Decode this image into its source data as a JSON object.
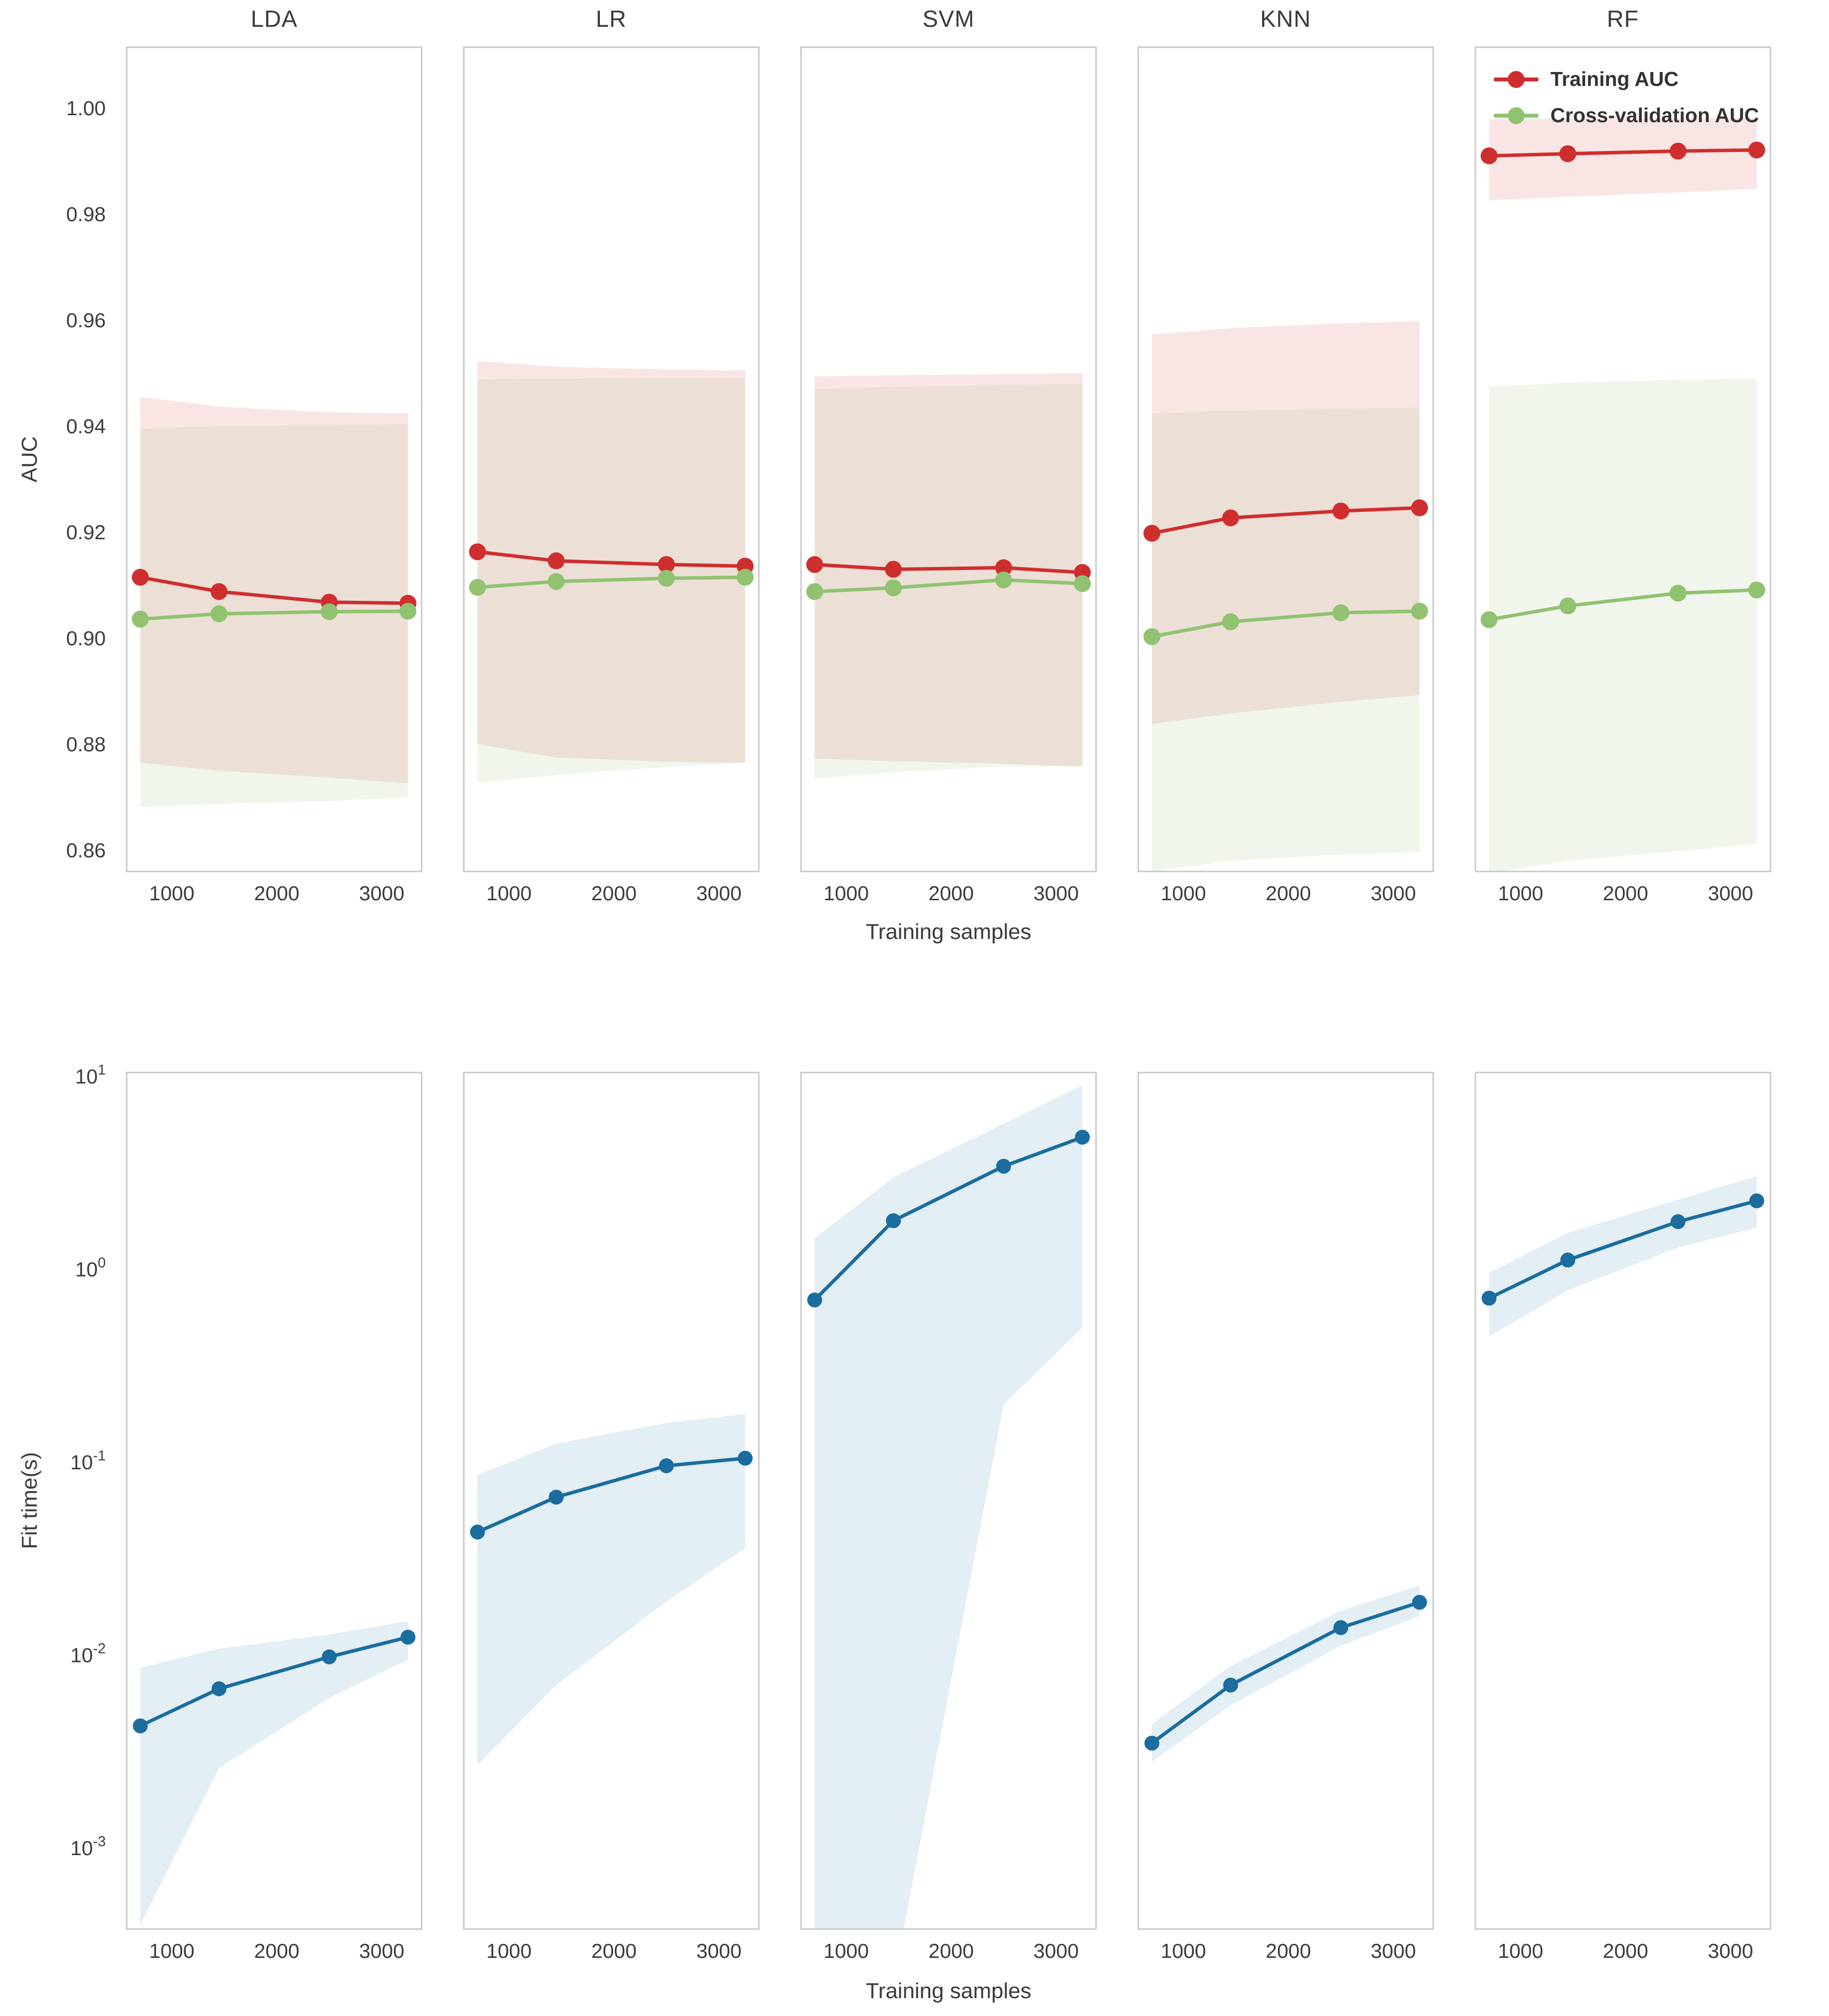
{
  "chart_data": {
    "type": "line",
    "x": [
      700,
      1450,
      2500,
      3250
    ],
    "x_ticks": [
      1000,
      2000,
      3000
    ],
    "xlim": [
      570,
      3380
    ],
    "xlabel": "Training samples",
    "grid": false,
    "legend_position": "upper-right-panel",
    "legend": [
      {
        "label": "Training AUC",
        "color": "#cf2e2e"
      },
      {
        "label": "Cross-validation AUC",
        "color": "#90c270"
      }
    ],
    "colors": {
      "training_line": "#cf2e2e",
      "cv_line": "#90c270",
      "fit_time_line": "#1a6d9e",
      "training_fill": "rgba(223,93,93,0.16)",
      "cv_fill": "rgba(150,185,110,0.13)",
      "fit_time_fill": "rgba(80,150,190,0.16)",
      "panel_border": "#c8c8c8",
      "tick_text": "#3c3c3c"
    },
    "rows": [
      {
        "ylabel": "AUC",
        "yscale": "linear",
        "ylim": [
          0.856,
          1.0115
        ],
        "yticks": [
          [
            0.86,
            "0.86"
          ],
          [
            0.88,
            "0.88"
          ],
          [
            0.9,
            "0.90"
          ],
          [
            0.92,
            "0.92"
          ],
          [
            0.94,
            "0.94"
          ],
          [
            0.96,
            "0.96"
          ],
          [
            0.98,
            "0.98"
          ],
          [
            1.0,
            "1.00"
          ]
        ],
        "panels": [
          {
            "title": "LDA",
            "series": [
              {
                "name": "Training AUC",
                "color": "#cf2e2e",
                "fill": "rgba(223,93,93,0.16)",
                "values": [
                  0.9115,
                  0.9088,
                  0.9068,
                  0.9066
                ],
                "band_low": [
                  0.8765,
                  0.875,
                  0.8737,
                  0.8726
                ],
                "band_high": [
                  0.9455,
                  0.9437,
                  0.9426,
                  0.9424
                ]
              },
              {
                "name": "Cross-validation AUC",
                "color": "#90c270",
                "fill": "rgba(150,185,110,0.13)",
                "values": [
                  0.9036,
                  0.9046,
                  0.905,
                  0.9051
                ],
                "band_low": [
                  0.8682,
                  0.8687,
                  0.8693,
                  0.87
                ],
                "band_high": [
                  0.9395,
                  0.94,
                  0.9402,
                  0.9404
                ]
              }
            ]
          },
          {
            "title": "LR",
            "series": [
              {
                "name": "Training AUC",
                "color": "#cf2e2e",
                "fill": "rgba(223,93,93,0.16)",
                "values": [
                  0.9163,
                  0.9146,
                  0.9139,
                  0.9136
                ],
                "band_low": [
                  0.88,
                  0.8775,
                  0.8767,
                  0.8765
                ],
                "band_high": [
                  0.9523,
                  0.9512,
                  0.9507,
                  0.9505
                ]
              },
              {
                "name": "Cross-validation AUC",
                "color": "#90c270",
                "fill": "rgba(150,185,110,0.13)",
                "values": [
                  0.9096,
                  0.9107,
                  0.9113,
                  0.9115
                ],
                "band_low": [
                  0.8727,
                  0.8742,
                  0.8757,
                  0.8765
                ],
                "band_high": [
                  0.9488,
                  0.949,
                  0.9491,
                  0.9491
                ]
              }
            ]
          },
          {
            "title": "SVM",
            "series": [
              {
                "name": "Training AUC",
                "color": "#cf2e2e",
                "fill": "rgba(223,93,93,0.16)",
                "values": [
                  0.9139,
                  0.913,
                  0.9133,
                  0.9124
                ],
                "band_low": [
                  0.8773,
                  0.8768,
                  0.8763,
                  0.8758
                ],
                "band_high": [
                  0.9494,
                  0.9496,
                  0.9498,
                  0.95
                ]
              },
              {
                "name": "Cross-validation AUC",
                "color": "#90c270",
                "fill": "rgba(150,185,110,0.13)",
                "values": [
                  0.9088,
                  0.9095,
                  0.911,
                  0.9103
                ],
                "band_low": [
                  0.8735,
                  0.8747,
                  0.8758,
                  0.8758
                ],
                "band_high": [
                  0.947,
                  0.9474,
                  0.9478,
                  0.948
                ]
              }
            ]
          },
          {
            "title": "KNN",
            "series": [
              {
                "name": "Training AUC",
                "color": "#cf2e2e",
                "fill": "rgba(223,93,93,0.16)",
                "values": [
                  0.9198,
                  0.9227,
                  0.924,
                  0.9246
                ],
                "band_low": [
                  0.8838,
                  0.8858,
                  0.888,
                  0.8893
                ],
                "band_high": [
                  0.9573,
                  0.9585,
                  0.9594,
                  0.9598
                ]
              },
              {
                "name": "Cross-validation AUC",
                "color": "#90c270",
                "fill": "rgba(150,185,110,0.13)",
                "values": [
                  0.9003,
                  0.9031,
                  0.9048,
                  0.9051
                ],
                "band_low": [
                  0.856,
                  0.858,
                  0.8592,
                  0.8596
                ],
                "band_high": [
                  0.9424,
                  0.9429,
                  0.9433,
                  0.9435
                ]
              }
            ]
          },
          {
            "title": "RF",
            "series": [
              {
                "name": "Training AUC",
                "color": "#cf2e2e",
                "fill": "rgba(223,93,93,0.16)",
                "values": [
                  0.991,
                  0.9914,
                  0.9919,
                  0.9921
                ],
                "band_low": [
                  0.9826,
                  0.9833,
                  0.9841,
                  0.9848
                ],
                "band_high": [
                  0.9979,
                  0.998,
                  0.9981,
                  0.9982
                ]
              },
              {
                "name": "Cross-validation AUC",
                "color": "#90c270",
                "fill": "rgba(150,185,110,0.13)",
                "values": [
                  0.9035,
                  0.9061,
                  0.9085,
                  0.9091
                ],
                "band_low": [
                  0.8556,
                  0.858,
                  0.8598,
                  0.8612
                ],
                "band_high": [
                  0.9474,
                  0.9482,
                  0.9488,
                  0.949
                ]
              }
            ]
          }
        ]
      },
      {
        "ylabel": "Fit time(s)",
        "yscale": "log",
        "ylim": [
          0.00038,
          10.5
        ],
        "yticks": [
          [
            10,
            "1"
          ],
          [
            1,
            "0"
          ],
          [
            0.1,
            "-1"
          ],
          [
            0.01,
            "-2"
          ],
          [
            0.001,
            "-3"
          ]
        ],
        "panels": [
          {
            "title": "LDA",
            "series": [
              {
                "name": "Fit time",
                "color": "#1a6d9e",
                "fill": "rgba(80,150,190,0.16)",
                "values": [
                  0.0043,
                  0.0067,
                  0.0098,
                  0.0124
                ],
                "band_low": [
                  0.0004,
                  0.0026,
                  0.006,
                  0.0095
                ],
                "band_high": [
                  0.0086,
                  0.0108,
                  0.0128,
                  0.015
                ]
              }
            ]
          },
          {
            "title": "LR",
            "series": [
              {
                "name": "Fit time",
                "color": "#1a6d9e",
                "fill": "rgba(80,150,190,0.16)",
                "values": [
                  0.0435,
                  0.066,
                  0.096,
                  0.105
                ],
                "band_low": [
                  0.0027,
                  0.007,
                  0.019,
                  0.036
                ],
                "band_high": [
                  0.086,
                  0.125,
                  0.16,
                  0.178
                ]
              }
            ]
          },
          {
            "title": "SVM",
            "series": [
              {
                "name": "Fit time",
                "color": "#1a6d9e",
                "fill": "rgba(80,150,190,0.16)",
                "values": [
                  0.695,
                  1.79,
                  3.43,
                  4.85
                ],
                "band_low": [
                  0.0002,
                  0.0002,
                  0.2,
                  0.5
                ],
                "band_high": [
                  1.45,
                  3.0,
                  5.7,
                  9.0
                ]
              }
            ]
          },
          {
            "title": "KNN",
            "series": [
              {
                "name": "Fit time",
                "color": "#1a6d9e",
                "fill": "rgba(80,150,190,0.16)",
                "values": [
                  0.0035,
                  0.007,
                  0.0139,
                  0.0188
                ],
                "band_low": [
                  0.0028,
                  0.0055,
                  0.0112,
                  0.016
                ],
                "band_high": [
                  0.0044,
                  0.0088,
                  0.017,
                  0.023
                ]
              }
            ]
          },
          {
            "title": "RF",
            "series": [
              {
                "name": "Fit time",
                "color": "#1a6d9e",
                "fill": "rgba(80,150,190,0.16)",
                "values": [
                  0.71,
                  1.12,
                  1.77,
                  2.27
                ],
                "band_low": [
                  0.45,
                  0.78,
                  1.3,
                  1.65
                ],
                "band_high": [
                  0.96,
                  1.55,
                  2.3,
                  3.05
                ]
              }
            ]
          }
        ]
      }
    ]
  }
}
